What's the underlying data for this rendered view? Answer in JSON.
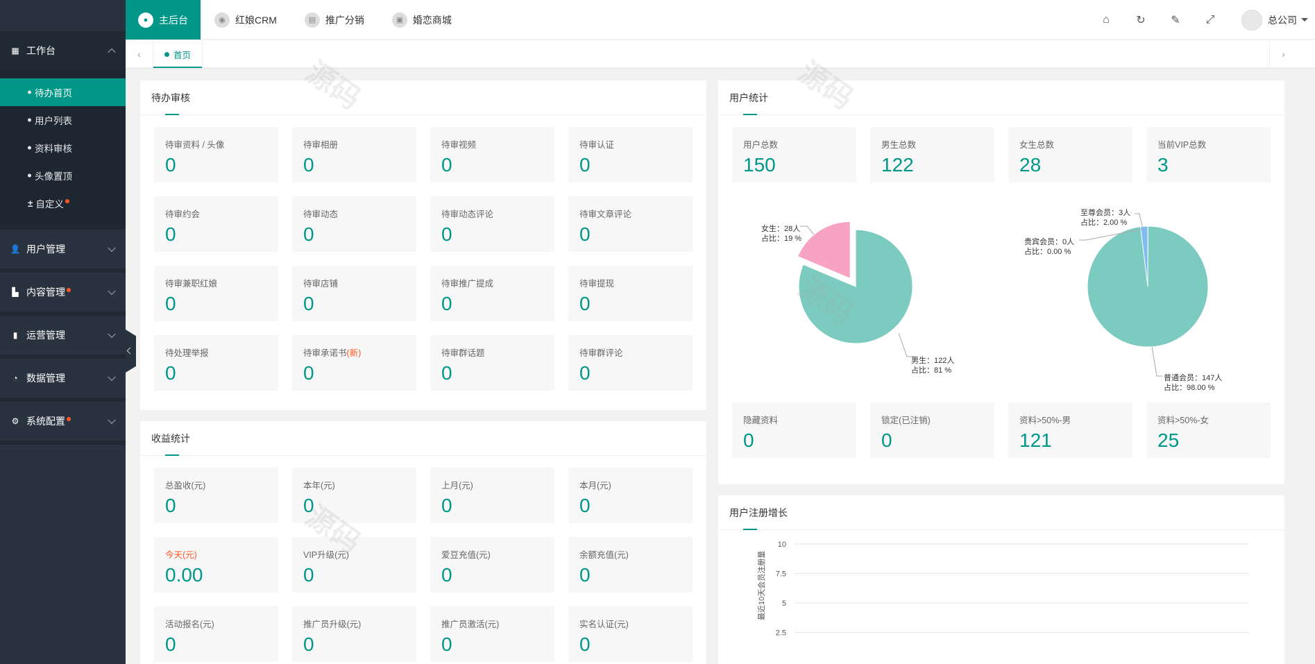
{
  "sidebar": {
    "groups": [
      {
        "label": "工作台",
        "icon": "dashboard-icon"
      },
      {
        "label": "用户管理",
        "icon": "user-icon"
      },
      {
        "label": "内容管理",
        "icon": "content-icon"
      },
      {
        "label": "运营管理",
        "icon": "bar-chart-icon"
      },
      {
        "label": "数据管理",
        "icon": "pie-icon"
      },
      {
        "label": "系统配置",
        "icon": "gear-icon"
      }
    ],
    "items": [
      "待办首页",
      "用户列表",
      "资料审核",
      "头像置顶",
      "自定义"
    ]
  },
  "topnav": {
    "items": [
      "主后台",
      "红娘CRM",
      "推广分销",
      "婚恋商城"
    ],
    "user": "总公司"
  },
  "tabs": {
    "home": "首页"
  },
  "pending": {
    "title": "待办审核",
    "stats": [
      {
        "label": "待审资料 / 头像",
        "value": "0"
      },
      {
        "label": "待审相册",
        "value": "0"
      },
      {
        "label": "待审视频",
        "value": "0"
      },
      {
        "label": "待审认证",
        "value": "0"
      },
      {
        "label": "待审约会",
        "value": "0"
      },
      {
        "label": "待审动态",
        "value": "0"
      },
      {
        "label": "待审动态评论",
        "value": "0"
      },
      {
        "label": "待审文章评论",
        "value": "0"
      },
      {
        "label": "待审兼职红娘",
        "value": "0"
      },
      {
        "label": "待审店铺",
        "value": "0"
      },
      {
        "label": "待审推广提成",
        "value": "0"
      },
      {
        "label": "待审提现",
        "value": "0"
      },
      {
        "label": "待处理举报",
        "value": "0"
      },
      {
        "label": "待审承诺书",
        "label_tag": "(新)",
        "value": "0"
      },
      {
        "label": "待审群话题",
        "value": "0"
      },
      {
        "label": "待审群评论",
        "value": "0"
      }
    ]
  },
  "income": {
    "title": "收益统计",
    "stats": [
      {
        "label": "总盈收(元)",
        "value": "0"
      },
      {
        "label": "本年(元)",
        "value": "0"
      },
      {
        "label": "上月(元)",
        "value": "0"
      },
      {
        "label": "本月(元)",
        "value": "0"
      },
      {
        "label": "今天(元)",
        "value": "0.00"
      },
      {
        "label": "VIP升级(元)",
        "value": "0"
      },
      {
        "label": "爱豆充值(元)",
        "value": "0"
      },
      {
        "label": "余额充值(元)",
        "value": "0"
      },
      {
        "label": "活动报名(元)",
        "value": "0"
      },
      {
        "label": "推广员升级(元)",
        "value": "0"
      },
      {
        "label": "推广员激活(元)",
        "value": "0"
      },
      {
        "label": "实名认证(元)",
        "value": "0"
      }
    ]
  },
  "users": {
    "title": "用户统计",
    "top": [
      {
        "label": "用户总数",
        "value": "150"
      },
      {
        "label": "男生总数",
        "value": "122"
      },
      {
        "label": "女生总数",
        "value": "28"
      },
      {
        "label": "当前VIP总数",
        "value": "3"
      }
    ],
    "bottom": [
      {
        "label": "隐藏资料",
        "value": "0"
      },
      {
        "label": "锁定(已注销)",
        "value": "0"
      },
      {
        "label": "资料>50%-男",
        "value": "121"
      },
      {
        "label": "资料>50%-女",
        "value": "25"
      }
    ],
    "gender_pie_labels": {
      "female": "女生：28人\n占比：19 %",
      "male": "男生：122人\n占比：81 %"
    },
    "vip_pie_labels": {
      "supreme": "至尊会员：3人\n占比：2.00 %",
      "noble": "贵宾会员：0人\n占比：0.00 %",
      "normal": "普通会员：147人\n占比：98.00 %"
    }
  },
  "growth": {
    "title": "用户注册增长",
    "ylabel": "最近10天会员注册量"
  },
  "colors": {
    "accent": "#009688",
    "male": "#7ccbc0",
    "female": "#f9a3c4",
    "vip_normal": "#7ccbc0",
    "vip_supreme": "#7fbcf2"
  },
  "chart_data": [
    {
      "type": "pie",
      "labels": [
        "女生",
        "男生"
      ],
      "values": [
        28,
        122
      ]
    },
    {
      "type": "pie",
      "labels": [
        "至尊会员",
        "贵宾会员",
        "普通会员"
      ],
      "values": [
        3,
        0,
        147
      ]
    },
    {
      "type": "line",
      "title": "用户注册增长",
      "ylabel": "最近10天会员注册量",
      "yticks": [
        2.5,
        5,
        7.5,
        10
      ],
      "ylim": [
        0,
        10
      ]
    }
  ]
}
